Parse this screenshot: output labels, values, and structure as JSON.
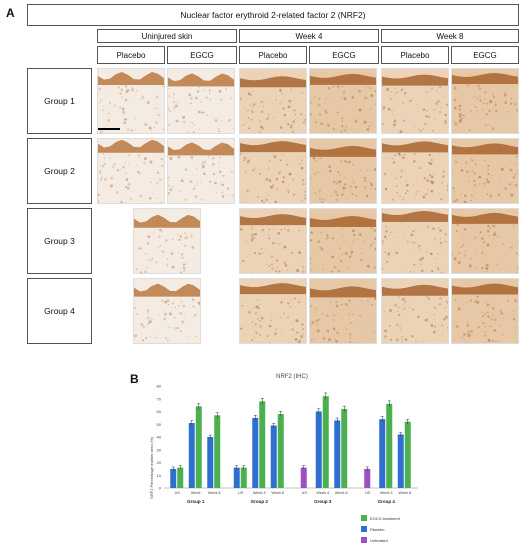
{
  "panel_a_label": "A",
  "panel_b_label": "B",
  "figure_a": {
    "title": "Nuclear factor erythroid 2-related factor 2 (NRF2)",
    "timepoints": [
      "Uninjured skin",
      "Week 4",
      "Week 8"
    ],
    "treatments": [
      "Placebo",
      "EGCG",
      "Placebo",
      "EGCG",
      "Placebo",
      "EGCG"
    ],
    "groups": [
      "Group 1",
      "Group 2",
      "Group 3",
      "Group 4"
    ]
  },
  "chart_data": {
    "type": "bar",
    "title": "NRF2 (IHC)",
    "ylabel": "NRF2 Percentage marker area (%)",
    "ylim": [
      0,
      80
    ],
    "yticks": [
      0,
      10,
      20,
      30,
      40,
      50,
      60,
      70,
      80
    ],
    "groups": [
      {
        "name": "Group 1",
        "categories": [
          "US",
          "Week",
          "Week 8"
        ],
        "bars": [
          {
            "cat": "US",
            "series": "Placebo",
            "value": 15
          },
          {
            "cat": "US",
            "series": "EGCG treatment",
            "value": 16
          },
          {
            "cat": "Week",
            "series": "Placebo",
            "value": 51
          },
          {
            "cat": "Week",
            "series": "EGCG treatment",
            "value": 64
          },
          {
            "cat": "Week 8",
            "series": "Placebo",
            "value": 40
          },
          {
            "cat": "Week 8",
            "series": "EGCG treatment",
            "value": 57
          }
        ]
      },
      {
        "name": "Group 2",
        "categories": [
          "US",
          "Week 4",
          "Week 8"
        ],
        "bars": [
          {
            "cat": "US",
            "series": "Placebo",
            "value": 16
          },
          {
            "cat": "US",
            "series": "EGCG treatment",
            "value": 16
          },
          {
            "cat": "Week 4",
            "series": "Placebo",
            "value": 55
          },
          {
            "cat": "Week 4",
            "series": "EGCG treatment",
            "value": 68
          },
          {
            "cat": "Week 8",
            "series": "Placebo",
            "value": 49
          },
          {
            "cat": "Week 8",
            "series": "EGCG treatment",
            "value": 58
          }
        ]
      },
      {
        "name": "Group 3",
        "categories": [
          "US",
          "Week 4",
          "Week 8"
        ],
        "bars": [
          {
            "cat": "US",
            "series": "Untreated",
            "value": 16
          },
          {
            "cat": "Week 4",
            "series": "Placebo",
            "value": 60
          },
          {
            "cat": "Week 4",
            "series": "EGCG treatment",
            "value": 72
          },
          {
            "cat": "Week 8",
            "series": "Placebo",
            "value": 53
          },
          {
            "cat": "Week 8",
            "series": "EGCG treatment",
            "value": 62
          }
        ]
      },
      {
        "name": "Group 4",
        "categories": [
          "US",
          "Week 4",
          "Week 8"
        ],
        "bars": [
          {
            "cat": "US",
            "series": "Untreated",
            "value": 15
          },
          {
            "cat": "Week 4",
            "series": "Placebo",
            "value": 54
          },
          {
            "cat": "Week 4",
            "series": "EGCG treatment",
            "value": 66
          },
          {
            "cat": "Week 8",
            "series": "Placebo",
            "value": 42
          },
          {
            "cat": "Week 8",
            "series": "EGCG treatment",
            "value": 52
          }
        ]
      }
    ],
    "legend": [
      {
        "name": "EGCG treatment",
        "color": "#4caf50"
      },
      {
        "name": "Placebo",
        "color": "#2e6fd0"
      },
      {
        "name": "Untreated",
        "color": "#9b4fc2"
      }
    ],
    "legend_placement": "bottom-right"
  }
}
